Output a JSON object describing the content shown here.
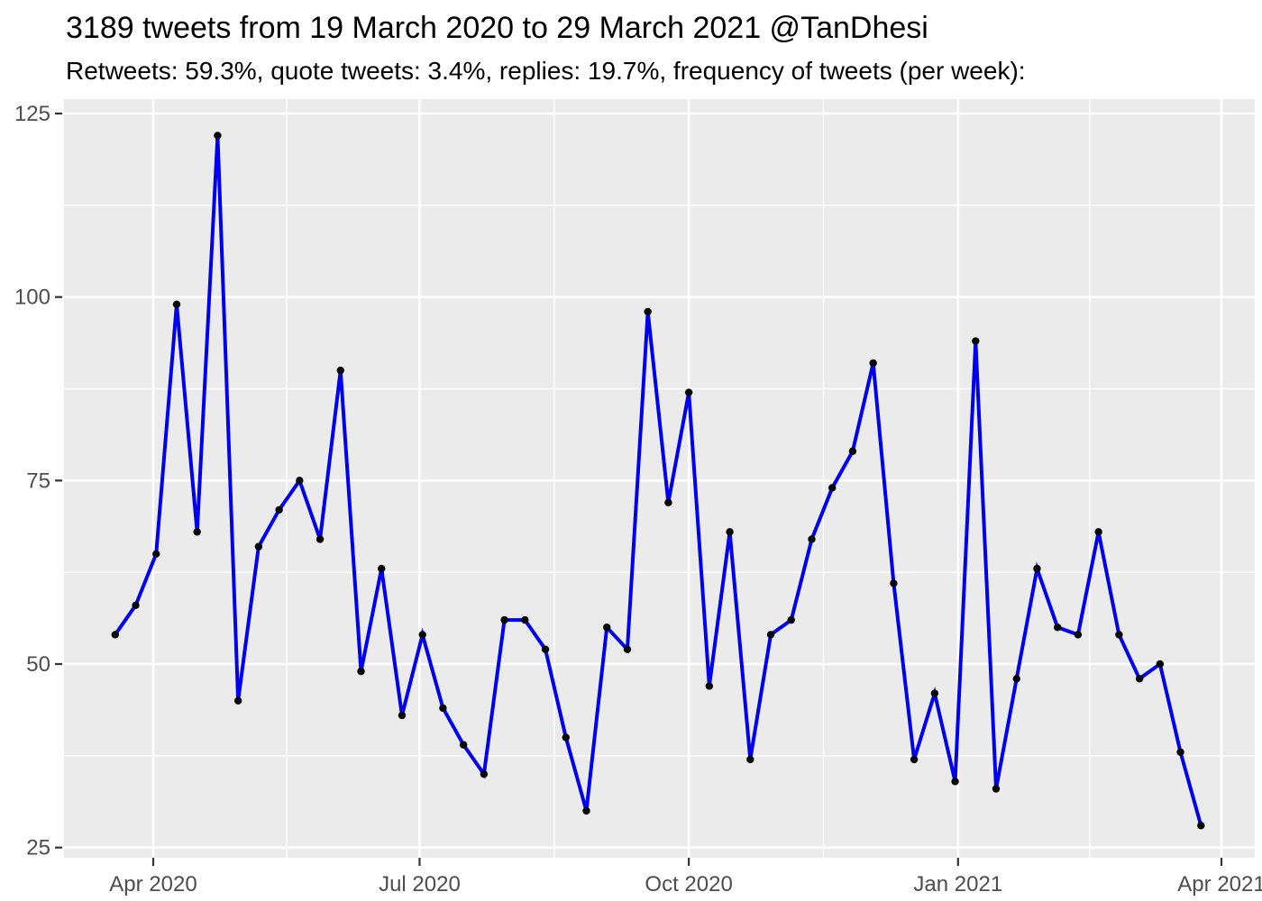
{
  "title": "3189 tweets from 19 March 2020 to 29 March 2021 @TanDhesi",
  "subtitle": "Retweets: 59.3%, quote tweets: 3.4%, replies: 19.7%, frequency of tweets (per week):",
  "colors": {
    "line": "#0000F0",
    "marker": "#060606",
    "panel_bg": "#EBEBEB",
    "grid": "#FFFFFF",
    "axis_text": "#4D4D4D",
    "tick": "#333333",
    "title_text": "#000000",
    "background": "#FFFFFF"
  },
  "chart_data": {
    "type": "line",
    "series_name": "tweets per week",
    "x": [
      "2020-03-19",
      "2020-03-26",
      "2020-04-02",
      "2020-04-09",
      "2020-04-16",
      "2020-04-23",
      "2020-04-30",
      "2020-05-07",
      "2020-05-14",
      "2020-05-21",
      "2020-05-28",
      "2020-06-04",
      "2020-06-11",
      "2020-06-18",
      "2020-06-25",
      "2020-07-02",
      "2020-07-09",
      "2020-07-16",
      "2020-07-23",
      "2020-07-30",
      "2020-08-06",
      "2020-08-13",
      "2020-08-20",
      "2020-08-27",
      "2020-09-03",
      "2020-09-10",
      "2020-09-17",
      "2020-09-24",
      "2020-10-01",
      "2020-10-08",
      "2020-10-15",
      "2020-10-22",
      "2020-10-29",
      "2020-11-05",
      "2020-11-12",
      "2020-11-19",
      "2020-11-26",
      "2020-12-03",
      "2020-12-10",
      "2020-12-17",
      "2020-12-24",
      "2020-12-31",
      "2021-01-07",
      "2021-01-14",
      "2021-01-21",
      "2021-01-28",
      "2021-02-04",
      "2021-02-11",
      "2021-02-18",
      "2021-02-25",
      "2021-03-04",
      "2021-03-11",
      "2021-03-18",
      "2021-03-25"
    ],
    "values": [
      54,
      58,
      65,
      99,
      68,
      122,
      45,
      66,
      71,
      75,
      67,
      90,
      49,
      63,
      43,
      54,
      44,
      39,
      35,
      56,
      56,
      52,
      40,
      30,
      55,
      52,
      98,
      72,
      87,
      47,
      68,
      37,
      54,
      56,
      67,
      74,
      79,
      91,
      61,
      37,
      46,
      34,
      94,
      33,
      48,
      63,
      55,
      54,
      68,
      54,
      48,
      50,
      38,
      28
    ],
    "x_ticks": [
      {
        "label": "Apr 2020",
        "date": "2020-04-01"
      },
      {
        "label": "Jul 2020",
        "date": "2020-07-01"
      },
      {
        "label": "Oct 2020",
        "date": "2020-10-01"
      },
      {
        "label": "Jan 2021",
        "date": "2021-01-01"
      },
      {
        "label": "Apr 2021",
        "date": "2021-04-01"
      }
    ],
    "y_ticks": [
      25,
      50,
      75,
      100,
      125
    ],
    "ylim": [
      23,
      127
    ],
    "xlim": [
      "2020-03-01",
      "2021-04-12"
    ],
    "grid": true,
    "legend": "none",
    "total_tweets_shown_in_title": 3189
  }
}
